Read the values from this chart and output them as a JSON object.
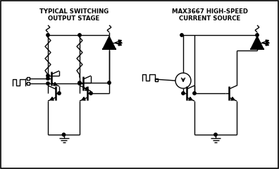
{
  "title1": "TYPICAL SWITCHING\nOUTPUT STAGE",
  "title2": "MAX3667 HIGH-SPEED\nCURRENT SOURCE",
  "bg_color": "#ffffff",
  "lw": 1.0,
  "fig_width": 3.96,
  "fig_height": 2.41,
  "dpi": 100
}
